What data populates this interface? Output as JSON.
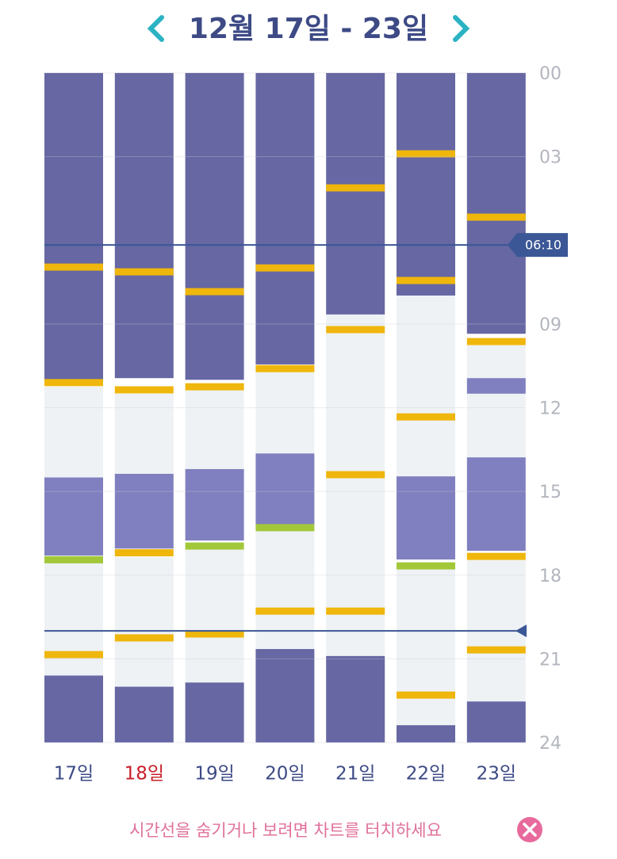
{
  "chart_data": {
    "type": "timeline",
    "title": "12월 17일 - 23일",
    "categories": [
      "17일",
      "18일",
      "19일",
      "20일",
      "21일",
      "22일",
      "23일"
    ],
    "category_colors": [
      "#3d4a85",
      "#c8202a",
      "#3d4a85",
      "#3d4a85",
      "#3d4a85",
      "#3d4a85",
      "#3d4a85"
    ],
    "ylim": [
      0,
      24
    ],
    "yticks": [
      {
        "value": 0,
        "label": "00"
      },
      {
        "value": 3,
        "label": "03"
      },
      {
        "value": 9,
        "label": "09"
      },
      12,
      15,
      18,
      21,
      24
    ],
    "grid": true,
    "time_lines": [
      {
        "value": 6.1667,
        "label": "06:10"
      },
      {
        "value": 20
      }
    ],
    "days": [
      {
        "segments": [
          {
            "start": 0,
            "end": 11.0,
            "color": "#6667a3"
          },
          {
            "start": 11.25,
            "end": 14.5,
            "color": "#eef2f5"
          },
          {
            "start": 14.5,
            "end": 17.3,
            "color": "#8080c0"
          },
          {
            "start": 17.55,
            "end": 21.6,
            "color": "#eef2f5"
          },
          {
            "start": 21.6,
            "end": 24,
            "color": "#6667a3"
          }
        ],
        "markers": [
          {
            "time": 6.96,
            "color": "#efb60c"
          },
          {
            "time": 11.1,
            "color": "#efb60c"
          },
          {
            "time": 17.45,
            "color": "#a2c83a"
          },
          {
            "time": 20.85,
            "color": "#efb60c"
          }
        ]
      },
      {
        "segments": [
          {
            "start": 0,
            "end": 10.94,
            "color": "#6667a3"
          },
          {
            "start": 11.5,
            "end": 14.37,
            "color": "#eef2f5"
          },
          {
            "start": 14.37,
            "end": 17.05,
            "color": "#8080c0"
          },
          {
            "start": 17.36,
            "end": 22.0,
            "color": "#eef2f5"
          },
          {
            "start": 22.0,
            "end": 24,
            "color": "#6667a3"
          }
        ],
        "markers": [
          {
            "time": 7.13,
            "color": "#efb60c"
          },
          {
            "time": 11.36,
            "color": "#efb60c"
          },
          {
            "time": 17.2,
            "color": "#efb60c"
          },
          {
            "time": 20.25,
            "color": "#efb60c"
          }
        ]
      },
      {
        "segments": [
          {
            "start": 0,
            "end": 11.0,
            "color": "#6667a3"
          },
          {
            "start": 11.36,
            "end": 14.2,
            "color": "#eef2f5"
          },
          {
            "start": 14.2,
            "end": 16.76,
            "color": "#8080c0"
          },
          {
            "start": 17.1,
            "end": 21.85,
            "color": "#eef2f5"
          },
          {
            "start": 21.85,
            "end": 24,
            "color": "#6667a3"
          }
        ],
        "markers": [
          {
            "time": 7.84,
            "color": "#efb60c"
          },
          {
            "time": 11.25,
            "color": "#efb60c"
          },
          {
            "time": 16.96,
            "color": "#a2c83a"
          },
          {
            "time": 20.11,
            "color": "#efb60c"
          }
        ]
      },
      {
        "segments": [
          {
            "start": 0,
            "end": 10.45,
            "color": "#6667a3"
          },
          {
            "start": 10.74,
            "end": 13.64,
            "color": "#eef2f5"
          },
          {
            "start": 13.64,
            "end": 16.19,
            "color": "#8080c0"
          },
          {
            "start": 16.42,
            "end": 20.65,
            "color": "#eef2f5"
          },
          {
            "start": 20.65,
            "end": 24,
            "color": "#6667a3"
          }
        ],
        "markers": [
          {
            "time": 6.99,
            "color": "#efb60c"
          },
          {
            "time": 10.6,
            "color": "#efb60c"
          },
          {
            "time": 16.3,
            "color": "#a2c83a"
          },
          {
            "time": 19.29,
            "color": "#efb60c"
          }
        ]
      },
      {
        "segments": [
          {
            "start": 0,
            "end": 8.66,
            "color": "#6667a3"
          },
          {
            "start": 8.66,
            "end": 20.9,
            "color": "#eef2f5"
          },
          {
            "start": 20.9,
            "end": 24,
            "color": "#6667a3"
          }
        ],
        "markers": [
          {
            "time": 4.12,
            "color": "#efb60c"
          },
          {
            "time": 9.2,
            "color": "#efb60c"
          },
          {
            "time": 14.4,
            "color": "#efb60c"
          },
          {
            "time": 19.29,
            "color": "#efb60c"
          }
        ]
      },
      {
        "segments": [
          {
            "start": 0,
            "end": 7.98,
            "color": "#6667a3"
          },
          {
            "start": 7.98,
            "end": 14.46,
            "color": "#eef2f5"
          },
          {
            "start": 14.46,
            "end": 17.44,
            "color": "#8080c0"
          },
          {
            "start": 17.8,
            "end": 23.38,
            "color": "#eef2f5"
          },
          {
            "start": 23.38,
            "end": 24,
            "color": "#6667a3"
          }
        ],
        "markers": [
          {
            "time": 2.9,
            "color": "#efb60c"
          },
          {
            "time": 7.44,
            "color": "#efb60c"
          },
          {
            "time": 12.33,
            "color": "#efb60c"
          },
          {
            "time": 17.67,
            "color": "#a2c83a"
          },
          {
            "time": 22.3,
            "color": "#efb60c"
          }
        ]
      },
      {
        "segments": [
          {
            "start": 0,
            "end": 9.35,
            "color": "#6667a3"
          },
          {
            "start": 9.77,
            "end": 10.94,
            "color": "#eef2f5"
          },
          {
            "start": 10.94,
            "end": 11.5,
            "color": "#8080c0"
          },
          {
            "start": 11.5,
            "end": 13.78,
            "color": "#eef2f5"
          },
          {
            "start": 13.78,
            "end": 17.13,
            "color": "#8080c0"
          },
          {
            "start": 17.47,
            "end": 22.53,
            "color": "#eef2f5"
          },
          {
            "start": 22.53,
            "end": 24,
            "color": "#6667a3"
          }
        ],
        "markers": [
          {
            "time": 5.17,
            "color": "#efb60c"
          },
          {
            "time": 9.63,
            "color": "#efb60c"
          },
          {
            "time": 17.33,
            "color": "#efb60c"
          },
          {
            "time": 20.68,
            "color": "#efb60c"
          }
        ]
      }
    ],
    "note": "시간선을 숨기거나 보려면 차트를 터치하세요"
  }
}
